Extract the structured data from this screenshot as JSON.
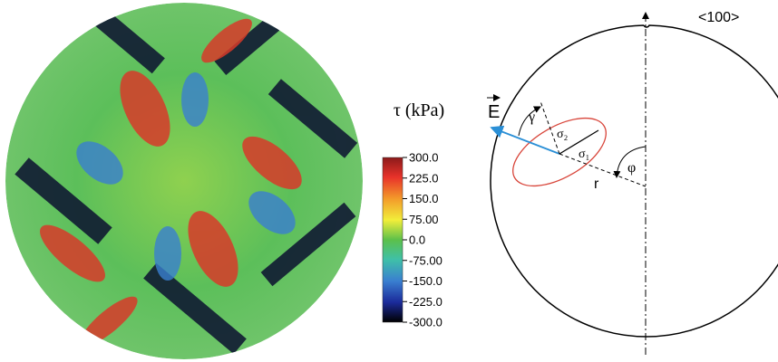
{
  "colorbar": {
    "title": "τ (kPa)",
    "ticks": [
      "300.0",
      "225.0",
      "150.0",
      "75.00",
      "0.0",
      "-75.00",
      "-150.0",
      "-225.0",
      "-300.0"
    ]
  },
  "diagram": {
    "axis_label": "<100>",
    "field_label": "E",
    "angle_gamma": "γ",
    "sigma2": "σ₂",
    "sigma1": "σ₁",
    "radius_label": "r",
    "angle_phi": "φ"
  }
}
